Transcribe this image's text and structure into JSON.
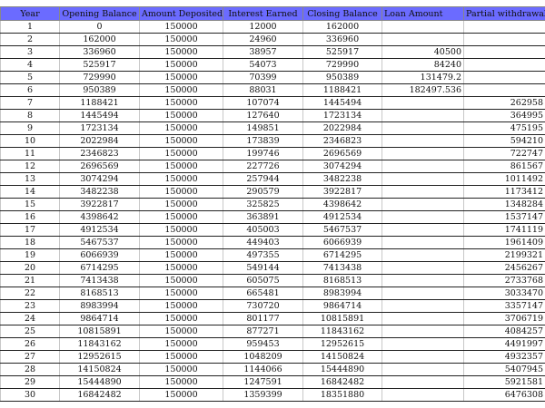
{
  "header_color": "#6b6bff",
  "columns": [
    "Year",
    "Opening Balance",
    "Amount Deposited",
    "Interest Earned",
    "Closing Balance",
    "Loan Amount",
    "Partial withdrawal"
  ],
  "rows": [
    [
      "1",
      "0",
      "150000",
      "12000",
      "162000",
      "",
      ""
    ],
    [
      "2",
      "162000",
      "150000",
      "24960",
      "336960",
      "",
      ""
    ],
    [
      "3",
      "336960",
      "150000",
      "38957",
      "525917",
      "40500",
      ""
    ],
    [
      "4",
      "525917",
      "150000",
      "54073",
      "729990",
      "84240",
      ""
    ],
    [
      "5",
      "729990",
      "150000",
      "70399",
      "950389",
      "131479.2",
      ""
    ],
    [
      "6",
      "950389",
      "150000",
      "88031",
      "1188421",
      "182497.536",
      ""
    ],
    [
      "7",
      "1188421",
      "150000",
      "107074",
      "1445494",
      "",
      "262958"
    ],
    [
      "8",
      "1445494",
      "150000",
      "127640",
      "1723134",
      "",
      "364995"
    ],
    [
      "9",
      "1723134",
      "150000",
      "149851",
      "2022984",
      "",
      "475195"
    ],
    [
      "10",
      "2022984",
      "150000",
      "173839",
      "2346823",
      "",
      "594210"
    ],
    [
      "11",
      "2346823",
      "150000",
      "199746",
      "2696569",
      "",
      "722747"
    ],
    [
      "12",
      "2696569",
      "150000",
      "227726",
      "3074294",
      "",
      "861567"
    ],
    [
      "13",
      "3074294",
      "150000",
      "257944",
      "3482238",
      "",
      "1011492"
    ],
    [
      "14",
      "3482238",
      "150000",
      "290579",
      "3922817",
      "",
      "1173412"
    ],
    [
      "15",
      "3922817",
      "150000",
      "325825",
      "4398642",
      "",
      "1348284"
    ],
    [
      "16",
      "4398642",
      "150000",
      "363891",
      "4912534",
      "",
      "1537147"
    ],
    [
      "17",
      "4912534",
      "150000",
      "405003",
      "5467537",
      "",
      "1741119"
    ],
    [
      "18",
      "5467537",
      "150000",
      "449403",
      "6066939",
      "",
      "1961409"
    ],
    [
      "19",
      "6066939",
      "150000",
      "497355",
      "6714295",
      "",
      "2199321"
    ],
    [
      "20",
      "6714295",
      "150000",
      "549144",
      "7413438",
      "",
      "2456267"
    ],
    [
      "21",
      "7413438",
      "150000",
      "605075",
      "8168513",
      "",
      "2733768"
    ],
    [
      "22",
      "8168513",
      "150000",
      "665481",
      "8983994",
      "",
      "3033470"
    ],
    [
      "23",
      "8983994",
      "150000",
      "730720",
      "9864714",
      "",
      "3357147"
    ],
    [
      "24",
      "9864714",
      "150000",
      "801177",
      "10815891",
      "",
      "3706719"
    ],
    [
      "25",
      "10815891",
      "150000",
      "877271",
      "11843162",
      "",
      "4084257"
    ],
    [
      "26",
      "11843162",
      "150000",
      "959453",
      "12952615",
      "",
      "4491997"
    ],
    [
      "27",
      "12952615",
      "150000",
      "1048209",
      "14150824",
      "",
      "4932357"
    ],
    [
      "28",
      "14150824",
      "150000",
      "1144066",
      "15444890",
      "",
      "5407945"
    ],
    [
      "29",
      "15444890",
      "150000",
      "1247591",
      "16842482",
      "",
      "5921581"
    ],
    [
      "30",
      "16842482",
      "150000",
      "1359399",
      "18351880",
      "",
      "6476308"
    ]
  ]
}
